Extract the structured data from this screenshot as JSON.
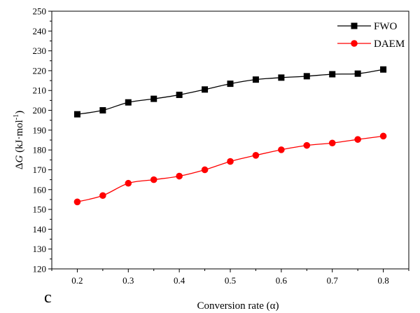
{
  "chart_data": {
    "type": "line",
    "panel_label": "c",
    "xlabel": "Conversion rate (α)",
    "ylabel_prefix": "Δ",
    "ylabel_var": "G",
    "ylabel_unit": " (kJ·mol",
    "ylabel_sup": "-1",
    "ylabel_close": ")",
    "x": [
      0.2,
      0.25,
      0.3,
      0.35,
      0.4,
      0.45,
      0.5,
      0.55,
      0.6,
      0.65,
      0.7,
      0.75,
      0.8
    ],
    "xlim": [
      0.15,
      0.85
    ],
    "ylim": [
      120,
      250
    ],
    "xticks": [
      0.2,
      0.3,
      0.4,
      0.5,
      0.6,
      0.7,
      0.8
    ],
    "xtick_labels": [
      "0.2",
      "0.3",
      "0.4",
      "0.5",
      "0.6",
      "0.7",
      "0.8"
    ],
    "yticks": [
      120,
      130,
      140,
      150,
      160,
      170,
      180,
      190,
      200,
      210,
      220,
      230,
      240,
      250
    ],
    "ytick_labels": [
      "120",
      "130",
      "140",
      "150",
      "160",
      "170",
      "180",
      "190",
      "200",
      "210",
      "220",
      "230",
      "240",
      "250"
    ],
    "grid": false,
    "legend_position": "top-right",
    "series": [
      {
        "name": "FWO",
        "color": "#000000",
        "marker": "square",
        "values": [
          198,
          200,
          204,
          205.8,
          207.8,
          210.5,
          213.4,
          215.5,
          216.5,
          217.2,
          218.2,
          218.5,
          220.6
        ]
      },
      {
        "name": "DAEM",
        "color": "#ff0000",
        "marker": "circle",
        "values": [
          153.8,
          157,
          163.2,
          165,
          166.8,
          170,
          174.2,
          177.3,
          180.1,
          182.3,
          183.5,
          185.3,
          187
        ]
      }
    ]
  }
}
